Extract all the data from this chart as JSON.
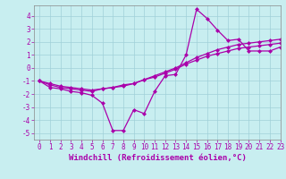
{
  "line1_x": [
    0,
    1,
    2,
    3,
    4,
    5,
    6,
    7,
    8,
    9,
    10,
    11,
    12,
    13,
    14,
    15,
    16,
    17,
    18,
    19,
    20,
    21,
    22,
    23
  ],
  "line1_y": [
    -1,
    -1.5,
    -1.6,
    -1.8,
    -1.9,
    -2.1,
    -2.7,
    -4.8,
    -4.8,
    -3.2,
    -3.5,
    -1.8,
    -0.6,
    -0.5,
    1.0,
    4.5,
    3.8,
    2.9,
    2.1,
    2.2,
    1.3,
    1.3,
    1.3,
    1.6
  ],
  "line2_x": [
    0,
    1,
    2,
    3,
    4,
    5,
    6,
    7,
    8,
    9,
    10,
    11,
    12,
    13,
    14,
    15,
    16,
    17,
    18,
    19,
    20,
    21,
    22,
    23
  ],
  "line2_y": [
    -1.0,
    -1.3,
    -1.5,
    -1.6,
    -1.7,
    -1.8,
    -1.6,
    -1.5,
    -1.3,
    -1.2,
    -0.9,
    -0.7,
    -0.4,
    -0.1,
    0.3,
    0.6,
    0.9,
    1.1,
    1.3,
    1.5,
    1.6,
    1.7,
    1.8,
    1.9
  ],
  "line3_x": [
    0,
    1,
    2,
    3,
    4,
    5,
    6,
    7,
    8,
    9,
    10,
    11,
    12,
    13,
    14,
    15,
    16,
    17,
    18,
    19,
    20,
    21,
    22,
    23
  ],
  "line3_y": [
    -1.0,
    -1.2,
    -1.4,
    -1.5,
    -1.6,
    -1.7,
    -1.6,
    -1.5,
    -1.4,
    -1.2,
    -0.9,
    -0.6,
    -0.3,
    0.0,
    0.4,
    0.8,
    1.1,
    1.4,
    1.6,
    1.8,
    1.9,
    2.0,
    2.1,
    2.2
  ],
  "bg_color": "#c8eef0",
  "grid_color": "#a0d0d8",
  "line_color": "#aa00aa",
  "marker": "D",
  "markersize": 2.5,
  "linewidth": 0.9,
  "xlim": [
    -0.5,
    23
  ],
  "ylim": [
    -5.5,
    4.8
  ],
  "yticks": [
    -5,
    -4,
    -3,
    -2,
    -1,
    0,
    1,
    2,
    3,
    4
  ],
  "xticks": [
    0,
    1,
    2,
    3,
    4,
    5,
    6,
    7,
    8,
    9,
    10,
    11,
    12,
    13,
    14,
    15,
    16,
    17,
    18,
    19,
    20,
    21,
    22,
    23
  ],
  "xlabel": "Windchill (Refroidissement éolien,°C)",
  "xlabel_fontsize": 6.5,
  "tick_fontsize": 5.5,
  "tick_color": "#aa00aa",
  "label_color": "#aa00aa",
  "spine_color": "#888888"
}
